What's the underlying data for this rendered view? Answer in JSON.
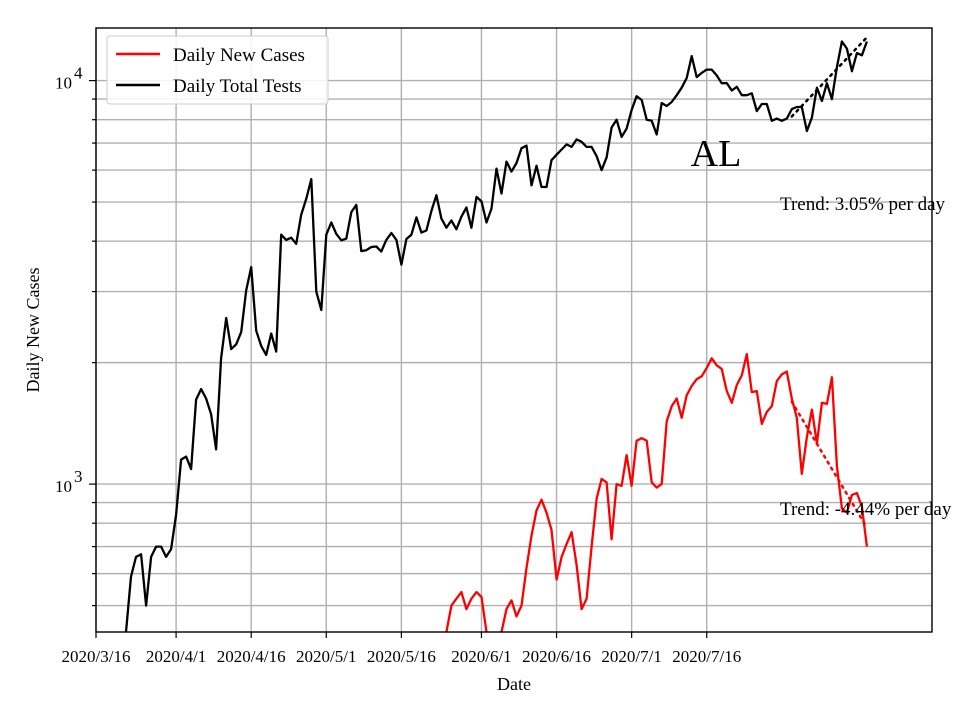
{
  "chart_data": {
    "type": "line",
    "title": "",
    "xlabel": "Date",
    "ylabel": "Daily New Cases",
    "y_scale": "log",
    "ylim": [
      430,
      13500
    ],
    "xlim": [
      "2020-03-16",
      "2020-08-30"
    ],
    "grid": true,
    "legend_position": "top-left",
    "x_tick_labels": [
      "2020/3/16",
      "2020/4/1",
      "2020/4/16",
      "2020/5/1",
      "2020/5/16",
      "2020/6/1",
      "2020/6/16",
      "2020/7/1",
      "2020/7/16"
    ],
    "x_tick_dates": [
      "2020-03-16",
      "2020-04-01",
      "2020-04-16",
      "2020-05-01",
      "2020-05-16",
      "2020-06-01",
      "2020-06-16",
      "2020-07-01",
      "2020-07-16"
    ],
    "y_major_ticks": [
      {
        "value": 1000,
        "base": "10",
        "exp": "3"
      },
      {
        "value": 10000,
        "base": "10",
        "exp": "4"
      }
    ],
    "y_minor_ticks": [
      500,
      600,
      700,
      800,
      900,
      2000,
      3000,
      4000,
      5000,
      6000,
      7000,
      8000,
      9000
    ],
    "state_label": "AL",
    "series": [
      {
        "name": "Daily Total Tests",
        "color": "#000000",
        "points": [
          [
            "2020-03-22",
            430
          ],
          [
            "2020-03-23",
            590
          ],
          [
            "2020-03-24",
            660
          ],
          [
            "2020-03-25",
            670
          ],
          [
            "2020-03-26",
            500
          ],
          [
            "2020-03-27",
            660
          ],
          [
            "2020-03-28",
            700
          ],
          [
            "2020-03-29",
            700
          ],
          [
            "2020-03-30",
            660
          ],
          [
            "2020-03-31",
            690
          ],
          [
            "2020-04-01",
            840
          ],
          [
            "2020-04-02",
            1150
          ],
          [
            "2020-04-03",
            1170
          ],
          [
            "2020-04-04",
            1090
          ],
          [
            "2020-04-05",
            1620
          ],
          [
            "2020-04-06",
            1720
          ],
          [
            "2020-04-07",
            1630
          ],
          [
            "2020-04-08",
            1490
          ],
          [
            "2020-04-09",
            1220
          ],
          [
            "2020-04-10",
            2050
          ],
          [
            "2020-04-11",
            2580
          ],
          [
            "2020-04-12",
            2160
          ],
          [
            "2020-04-13",
            2220
          ],
          [
            "2020-04-14",
            2380
          ],
          [
            "2020-04-15",
            3020
          ],
          [
            "2020-04-16",
            3450
          ],
          [
            "2020-04-17",
            2400
          ],
          [
            "2020-04-18",
            2200
          ],
          [
            "2020-04-19",
            2090
          ],
          [
            "2020-04-20",
            2360
          ],
          [
            "2020-04-21",
            2130
          ],
          [
            "2020-04-22",
            4150
          ],
          [
            "2020-04-23",
            4030
          ],
          [
            "2020-04-24",
            4080
          ],
          [
            "2020-04-25",
            3940
          ],
          [
            "2020-04-26",
            4650
          ],
          [
            "2020-04-27",
            5100
          ],
          [
            "2020-04-28",
            5700
          ],
          [
            "2020-04-29",
            3000
          ],
          [
            "2020-04-30",
            2700
          ],
          [
            "2020-05-01",
            4150
          ],
          [
            "2020-05-02",
            4450
          ],
          [
            "2020-05-03",
            4170
          ],
          [
            "2020-05-04",
            4020
          ],
          [
            "2020-05-05",
            4060
          ],
          [
            "2020-05-06",
            4720
          ],
          [
            "2020-05-07",
            4920
          ],
          [
            "2020-05-08",
            3780
          ],
          [
            "2020-05-09",
            3800
          ],
          [
            "2020-05-10",
            3870
          ],
          [
            "2020-05-11",
            3880
          ],
          [
            "2020-05-12",
            3770
          ],
          [
            "2020-05-13",
            4030
          ],
          [
            "2020-05-14",
            4190
          ],
          [
            "2020-05-15",
            4030
          ],
          [
            "2020-05-16",
            3500
          ],
          [
            "2020-05-17",
            4050
          ],
          [
            "2020-05-18",
            4150
          ],
          [
            "2020-05-19",
            4580
          ],
          [
            "2020-05-20",
            4200
          ],
          [
            "2020-05-21",
            4250
          ],
          [
            "2020-05-22",
            4750
          ],
          [
            "2020-05-23",
            5200
          ],
          [
            "2020-05-24",
            4550
          ],
          [
            "2020-05-25",
            4320
          ],
          [
            "2020-05-26",
            4500
          ],
          [
            "2020-05-27",
            4280
          ],
          [
            "2020-05-28",
            4600
          ],
          [
            "2020-05-29",
            4850
          ],
          [
            "2020-05-30",
            4320
          ],
          [
            "2020-05-31",
            5150
          ],
          [
            "2020-06-01",
            5020
          ],
          [
            "2020-06-02",
            4450
          ],
          [
            "2020-06-03",
            4820
          ],
          [
            "2020-06-04",
            6050
          ],
          [
            "2020-06-05",
            5250
          ],
          [
            "2020-06-06",
            6300
          ],
          [
            "2020-06-07",
            5950
          ],
          [
            "2020-06-08",
            6250
          ],
          [
            "2020-06-09",
            6800
          ],
          [
            "2020-06-10",
            6900
          ],
          [
            "2020-06-11",
            5500
          ],
          [
            "2020-06-12",
            6150
          ],
          [
            "2020-06-13",
            5450
          ],
          [
            "2020-06-14",
            5450
          ],
          [
            "2020-06-15",
            6350
          ],
          [
            "2020-06-16",
            6550
          ],
          [
            "2020-06-17",
            6750
          ],
          [
            "2020-06-18",
            6950
          ],
          [
            "2020-06-19",
            6850
          ],
          [
            "2020-06-20",
            7150
          ],
          [
            "2020-06-21",
            7050
          ],
          [
            "2020-06-22",
            6850
          ],
          [
            "2020-06-23",
            6850
          ],
          [
            "2020-06-24",
            6500
          ],
          [
            "2020-06-25",
            6000
          ],
          [
            "2020-06-26",
            6450
          ],
          [
            "2020-06-27",
            7650
          ],
          [
            "2020-06-28",
            8000
          ],
          [
            "2020-06-29",
            7250
          ],
          [
            "2020-06-30",
            7600
          ],
          [
            "2020-07-01",
            8450
          ],
          [
            "2020-07-02",
            9150
          ],
          [
            "2020-07-03",
            8950
          ],
          [
            "2020-07-04",
            8000
          ],
          [
            "2020-07-05",
            7950
          ],
          [
            "2020-07-06",
            7350
          ],
          [
            "2020-07-07",
            8800
          ],
          [
            "2020-07-08",
            8650
          ],
          [
            "2020-07-09",
            8850
          ],
          [
            "2020-07-10",
            9200
          ],
          [
            "2020-07-11",
            9600
          ],
          [
            "2020-07-12",
            10150
          ],
          [
            "2020-07-13",
            11500
          ],
          [
            "2020-07-14",
            10200
          ],
          [
            "2020-07-15",
            10450
          ],
          [
            "2020-07-16",
            10650
          ],
          [
            "2020-07-17",
            10650
          ],
          [
            "2020-07-18",
            10300
          ],
          [
            "2020-07-19",
            9850
          ],
          [
            "2020-07-20",
            9850
          ],
          [
            "2020-07-21",
            9450
          ],
          [
            "2020-07-22",
            9650
          ],
          [
            "2020-07-23",
            9200
          ],
          [
            "2020-07-24",
            9200
          ],
          [
            "2020-07-25",
            9300
          ],
          [
            "2020-07-26",
            8400
          ],
          [
            "2020-07-27",
            8750
          ],
          [
            "2020-07-28",
            8750
          ],
          [
            "2020-07-29",
            7950
          ],
          [
            "2020-07-30",
            8050
          ],
          [
            "2020-07-31",
            7950
          ],
          [
            "2020-08-01",
            8050
          ],
          [
            "2020-08-02",
            8500
          ],
          [
            "2020-08-03",
            8600
          ],
          [
            "2020-08-04",
            8600
          ],
          [
            "2020-08-05",
            7500
          ],
          [
            "2020-08-06",
            8100
          ],
          [
            "2020-08-07",
            9600
          ],
          [
            "2020-08-08",
            8900
          ],
          [
            "2020-08-09",
            9850
          ],
          [
            "2020-08-10",
            9000
          ],
          [
            "2020-08-11",
            10800
          ],
          [
            "2020-08-12",
            12500
          ],
          [
            "2020-08-13",
            12000
          ],
          [
            "2020-08-14",
            10550
          ],
          [
            "2020-08-15",
            11700
          ],
          [
            "2020-08-16",
            11550
          ],
          [
            "2020-08-17",
            12500
          ]
        ]
      },
      {
        "name": "Daily New Cases",
        "color": "#ff0000",
        "segments": [
          [
            [
              "2020-05-25",
              430
            ],
            [
              "2020-05-26",
              500
            ],
            [
              "2020-05-27",
              520
            ],
            [
              "2020-05-28",
              540
            ],
            [
              "2020-05-29",
              490
            ],
            [
              "2020-05-30",
              520
            ],
            [
              "2020-05-31",
              540
            ],
            [
              "2020-06-01",
              525
            ],
            [
              "2020-06-02",
              430
            ]
          ],
          [
            [
              "2020-06-05",
              430
            ],
            [
              "2020-06-06",
              490
            ],
            [
              "2020-06-07",
              515
            ],
            [
              "2020-06-08",
              470
            ],
            [
              "2020-06-09",
              500
            ],
            [
              "2020-06-10",
              620
            ],
            [
              "2020-06-11",
              745
            ],
            [
              "2020-06-12",
              860
            ],
            [
              "2020-06-13",
              915
            ],
            [
              "2020-06-14",
              850
            ],
            [
              "2020-06-15",
              770
            ],
            [
              "2020-06-16",
              580
            ],
            [
              "2020-06-17",
              660
            ],
            [
              "2020-06-18",
              710
            ],
            [
              "2020-06-19",
              760
            ],
            [
              "2020-06-20",
              630
            ],
            [
              "2020-06-21",
              490
            ],
            [
              "2020-06-22",
              520
            ],
            [
              "2020-06-23",
              700
            ],
            [
              "2020-06-24",
              920
            ],
            [
              "2020-06-25",
              1030
            ],
            [
              "2020-06-26",
              1010
            ],
            [
              "2020-06-27",
              730
            ],
            [
              "2020-06-28",
              1000
            ],
            [
              "2020-06-29",
              990
            ],
            [
              "2020-06-30",
              1180
            ],
            [
              "2020-07-01",
              990
            ],
            [
              "2020-07-02",
              1280
            ],
            [
              "2020-07-03",
              1300
            ],
            [
              "2020-07-04",
              1280
            ],
            [
              "2020-07-05",
              1010
            ],
            [
              "2020-07-06",
              980
            ],
            [
              "2020-07-07",
              1000
            ],
            [
              "2020-07-08",
              1430
            ],
            [
              "2020-07-09",
              1560
            ],
            [
              "2020-07-10",
              1630
            ],
            [
              "2020-07-11",
              1460
            ],
            [
              "2020-07-12",
              1660
            ],
            [
              "2020-07-13",
              1750
            ],
            [
              "2020-07-14",
              1820
            ],
            [
              "2020-07-15",
              1850
            ],
            [
              "2020-07-16",
              1940
            ],
            [
              "2020-07-17",
              2050
            ],
            [
              "2020-07-18",
              1970
            ],
            [
              "2020-07-19",
              1930
            ],
            [
              "2020-07-20",
              1700
            ],
            [
              "2020-07-21",
              1590
            ],
            [
              "2020-07-22",
              1760
            ],
            [
              "2020-07-23",
              1860
            ],
            [
              "2020-07-24",
              2100
            ],
            [
              "2020-07-25",
              1690
            ],
            [
              "2020-07-26",
              1700
            ],
            [
              "2020-07-27",
              1410
            ],
            [
              "2020-07-28",
              1510
            ],
            [
              "2020-07-29",
              1560
            ],
            [
              "2020-07-30",
              1800
            ],
            [
              "2020-07-31",
              1870
            ],
            [
              "2020-08-01",
              1900
            ],
            [
              "2020-08-02",
              1630
            ],
            [
              "2020-08-03",
              1460
            ],
            [
              "2020-08-04",
              1060
            ],
            [
              "2020-08-05",
              1310
            ],
            [
              "2020-08-06",
              1530
            ],
            [
              "2020-08-07",
              1260
            ],
            [
              "2020-08-08",
              1590
            ],
            [
              "2020-08-09",
              1580
            ],
            [
              "2020-08-10",
              1840
            ],
            [
              "2020-08-11",
              1110
            ],
            [
              "2020-08-12",
              870
            ],
            [
              "2020-08-13",
              850
            ],
            [
              "2020-08-14",
              940
            ],
            [
              "2020-08-15",
              950
            ],
            [
              "2020-08-16",
              880
            ],
            [
              "2020-08-17",
              700
            ]
          ]
        ]
      }
    ],
    "trends": [
      {
        "label": "Trend: 3.05% per day",
        "series": "Daily Total Tests",
        "color": "#000000",
        "style": "dotted",
        "start": [
          "2020-08-02",
          8150
        ],
        "end": [
          "2020-08-17",
          12800
        ]
      },
      {
        "label": "Trend: -4.44% per day",
        "series": "Daily New Cases",
        "color": "#ff0000",
        "style": "dotted",
        "start": [
          "2020-08-02",
          1600
        ],
        "end": [
          "2020-08-17",
          780
        ]
      }
    ]
  }
}
